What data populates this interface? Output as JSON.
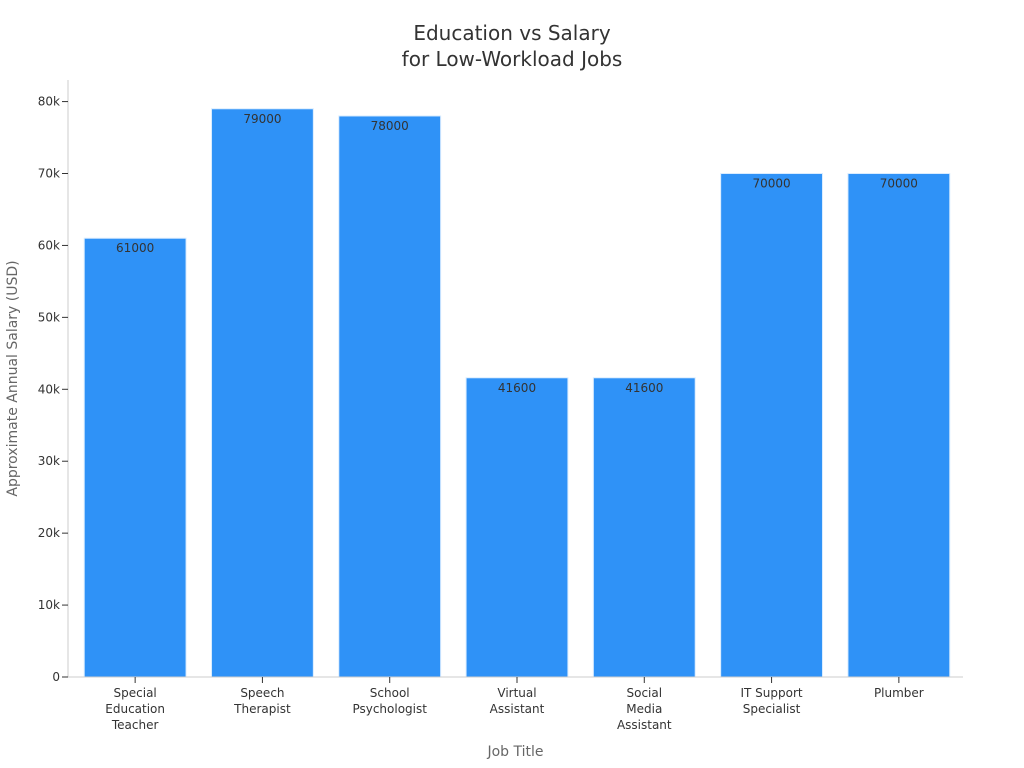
{
  "chart_data": {
    "type": "bar",
    "title": [
      "Education vs Salary",
      "for Low-Workload Jobs"
    ],
    "xlabel": "Job Title",
    "ylabel": "Approximate Annual Salary (USD)",
    "ylim": [
      0,
      83000
    ],
    "yticks": [
      0,
      10000,
      20000,
      30000,
      40000,
      50000,
      60000,
      70000,
      80000
    ],
    "ytick_labels": [
      "0",
      "10k",
      "20k",
      "30k",
      "40k",
      "50k",
      "60k",
      "70k",
      "80k"
    ],
    "categories": [
      [
        "Special",
        "Education",
        "Teacher"
      ],
      [
        "Speech",
        "Therapist"
      ],
      [
        "School",
        "Psychologist"
      ],
      [
        "Virtual",
        "Assistant"
      ],
      [
        "Social",
        "Media",
        "Assistant"
      ],
      [
        "IT Support",
        "Specialist"
      ],
      [
        "Plumber"
      ]
    ],
    "values": [
      61000,
      79000,
      78000,
      41600,
      41600,
      70000,
      70000
    ],
    "data_labels": [
      "61000",
      "79000",
      "78000",
      "41600",
      "41600",
      "70000",
      "70000"
    ],
    "grid": false,
    "bar_color": "#2f92f7"
  }
}
